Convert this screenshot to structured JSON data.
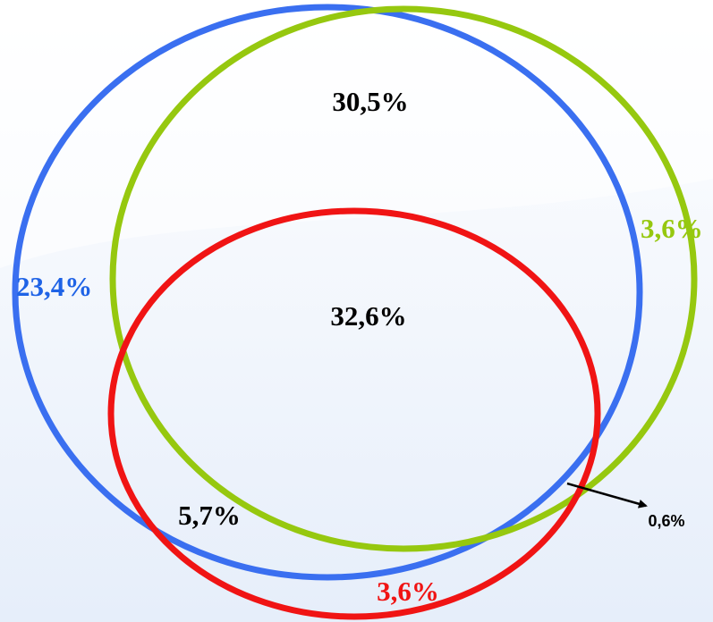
{
  "colors": {
    "background_top": "#ffffff",
    "background_bottom": "#e6eefa",
    "ring_blue": "#3a6ff0",
    "ring_green": "#96c80f",
    "ring_red": "#f01414",
    "label_blue": "#1f63e6",
    "label_green": "#96c80f",
    "label_red": "#f01414",
    "label_dark": "#000000"
  },
  "regions": {
    "top_overlap": "30,5%",
    "center_overlap": "32,6%",
    "blue_only": "23,4%",
    "green_only": "3,6%",
    "red_only": "3,6%",
    "blue_red_only": "5,7%",
    "green_red_only": "0,6%"
  }
}
